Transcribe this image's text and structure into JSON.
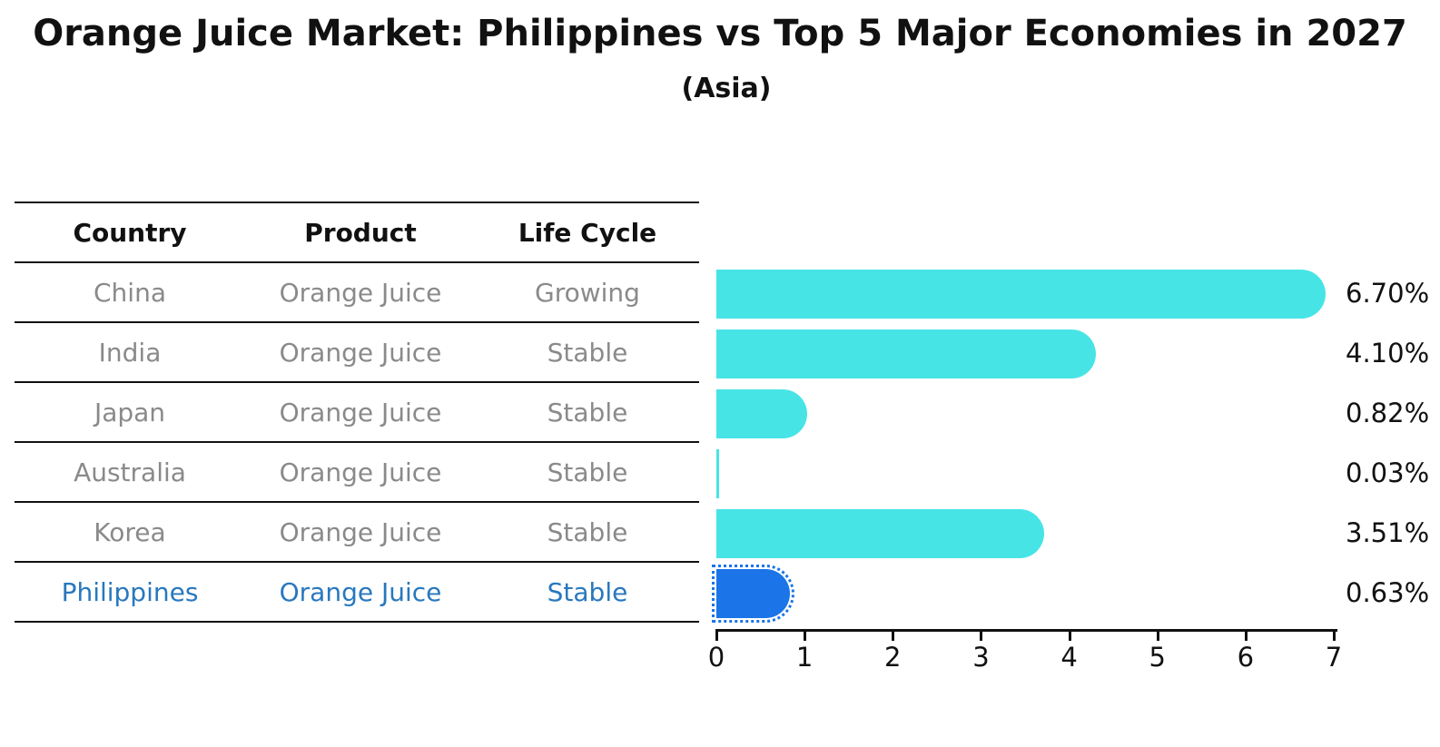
{
  "title": "Orange Juice Market: Philippines vs Top 5 Major Economies in 2027",
  "subtitle": "(Asia)",
  "table": {
    "headers": [
      "Country",
      "Product",
      "Life Cycle"
    ],
    "rows": [
      {
        "country": "China",
        "product": "Orange Juice",
        "life_cycle": "Growing",
        "highlight": false
      },
      {
        "country": "India",
        "product": "Orange Juice",
        "life_cycle": "Stable",
        "highlight": false
      },
      {
        "country": "Japan",
        "product": "Orange Juice",
        "life_cycle": "Stable",
        "highlight": false
      },
      {
        "country": "Australia",
        "product": "Orange Juice",
        "life_cycle": "Stable",
        "highlight": false
      },
      {
        "country": "Korea",
        "product": "Orange Juice",
        "life_cycle": "Stable",
        "highlight": false
      },
      {
        "country": "Philippines",
        "product": "Orange Juice",
        "life_cycle": "Stable",
        "highlight": true
      }
    ]
  },
  "chart_data": {
    "type": "bar",
    "orientation": "horizontal",
    "title": "Orange Juice Market: Philippines vs Top 5 Major Economies in 2027 (Asia)",
    "categories": [
      "China",
      "India",
      "Japan",
      "Australia",
      "Korea",
      "Philippines"
    ],
    "values": [
      6.7,
      4.1,
      0.82,
      0.03,
      3.51,
      0.63
    ],
    "value_labels": [
      "6.70%",
      "4.10%",
      "0.82%",
      "0.03%",
      "3.51%",
      "0.63%"
    ],
    "highlight_index": 5,
    "xlim": [
      0,
      7
    ],
    "x_ticks": [
      0,
      1,
      2,
      3,
      4,
      5,
      6,
      7
    ],
    "xlabel": "",
    "ylabel": "",
    "grid": false,
    "legend": "none",
    "bar_color": "#47e4e6",
    "highlight_bar_color": "#1b74e8",
    "highlight_text_color": "#2878be",
    "muted_text_color": "#8a8a8a"
  }
}
